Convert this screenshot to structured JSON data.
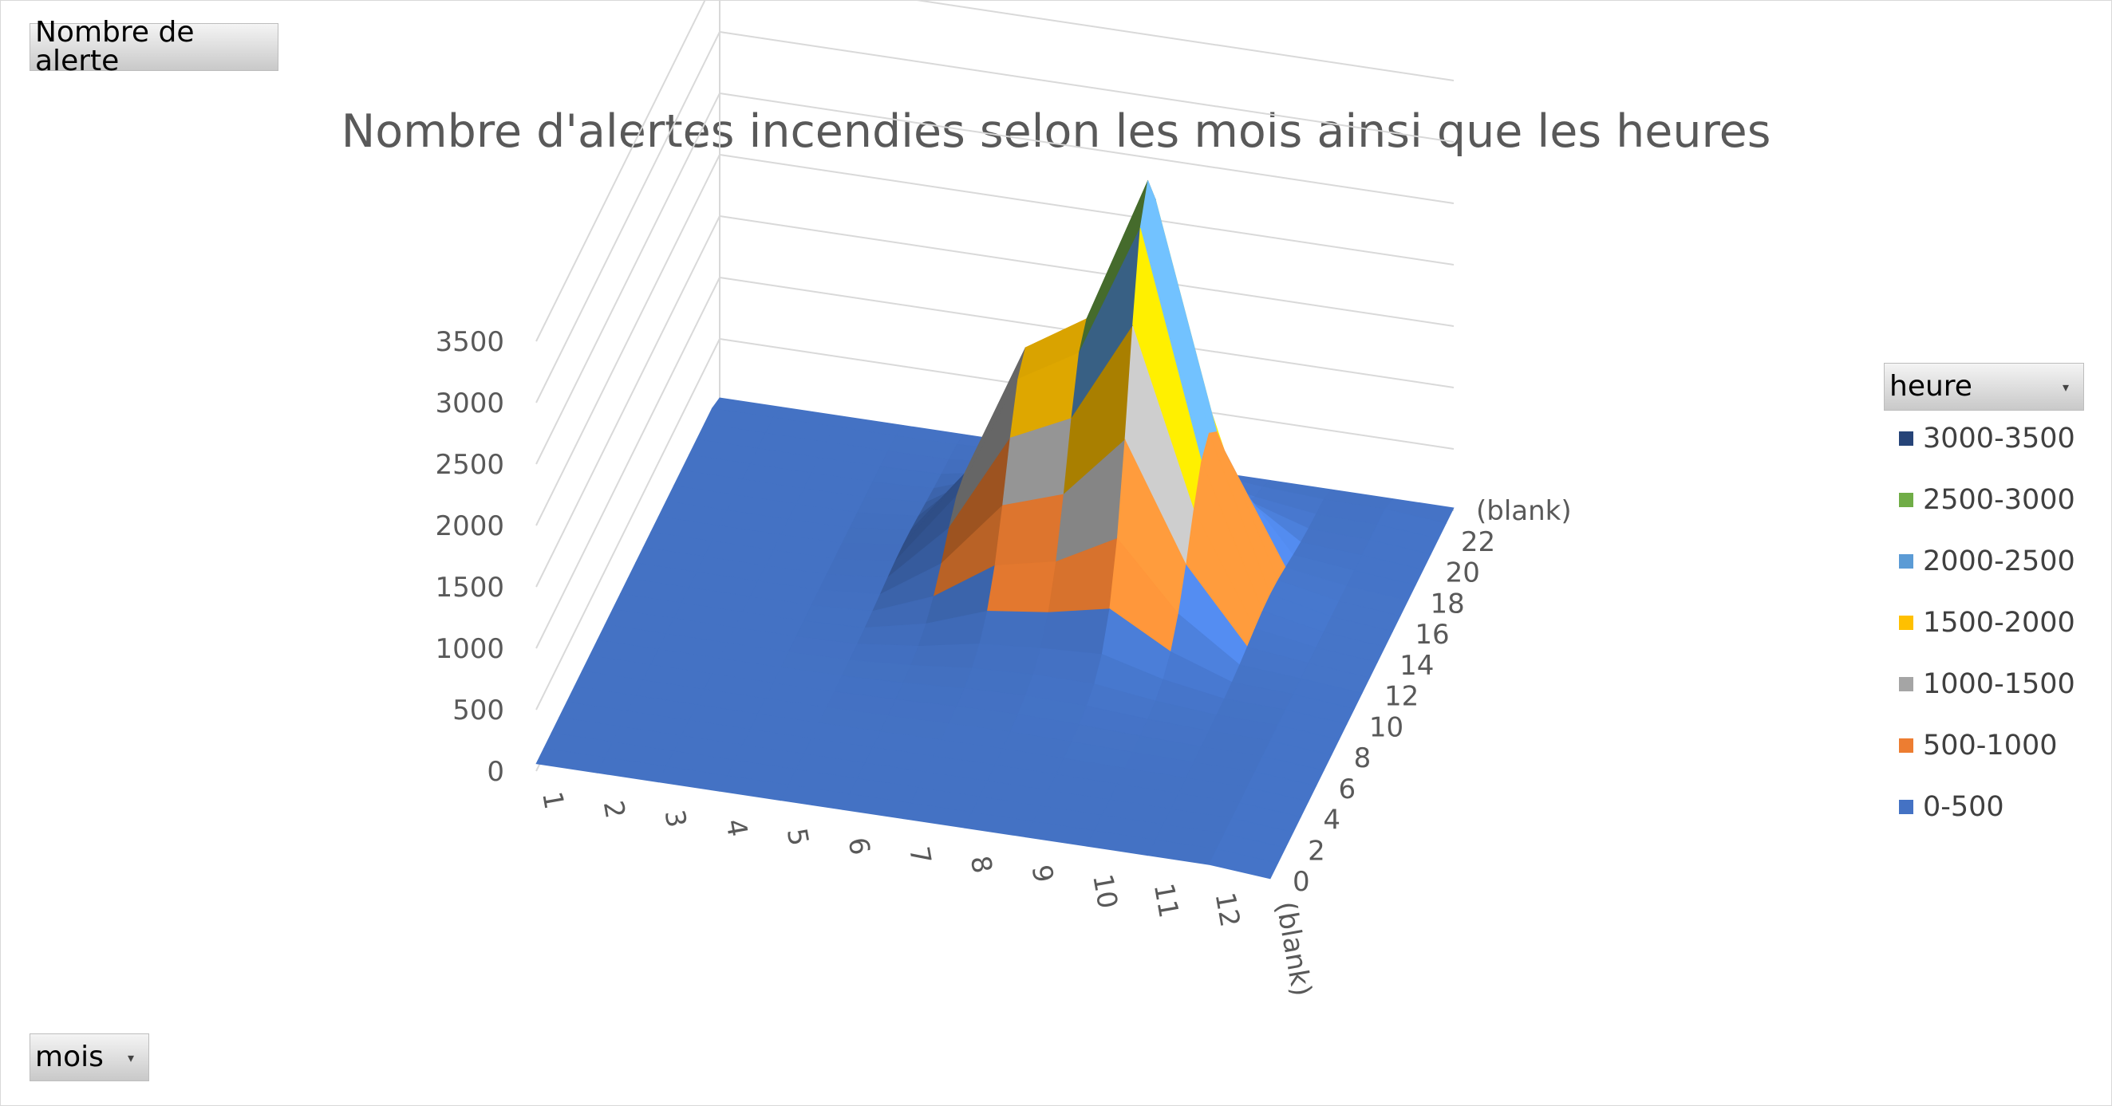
{
  "pivot": {
    "values_button": "Nombre de alerte",
    "row_button": "mois",
    "legend_button": "heure"
  },
  "icons": {
    "dropdown": "dropdown-arrow-icon"
  },
  "chart_data": {
    "type": "surface-3d",
    "title": "Nombre d'alertes incendies selon les mois ainsi que les heures",
    "xlabel": "",
    "ylabel": "",
    "zlim": [
      0,
      3500
    ],
    "z_ticks": [
      "0",
      "500",
      "1000",
      "1500",
      "2000",
      "2500",
      "3000",
      "3500"
    ],
    "mois_categories": [
      "1",
      "2",
      "3",
      "4",
      "5",
      "6",
      "7",
      "8",
      "9",
      "10",
      "11",
      "12",
      "(blank)"
    ],
    "heure_ticks": [
      "0",
      "2",
      "4",
      "6",
      "8",
      "10",
      "12",
      "14",
      "16",
      "18",
      "20",
      "22",
      "(blank)"
    ],
    "legend_position": "right",
    "bands": [
      {
        "label": "3000-3500",
        "color": "#264478"
      },
      {
        "label": "2500-3000",
        "color": "#70ad47"
      },
      {
        "label": "2000-2500",
        "color": "#5b9bd5"
      },
      {
        "label": "1500-2000",
        "color": "#ffc000"
      },
      {
        "label": "1000-1500",
        "color": "#a5a5a5"
      },
      {
        "label": "500-1000",
        "color": "#ed7d31"
      },
      {
        "label": "0-500",
        "color": "#4472c4"
      }
    ],
    "peaks": [
      {
        "mois": "7",
        "heure": "16",
        "value": 1550
      },
      {
        "mois": "9",
        "heure": "16",
        "value": 3100
      }
    ]
  }
}
